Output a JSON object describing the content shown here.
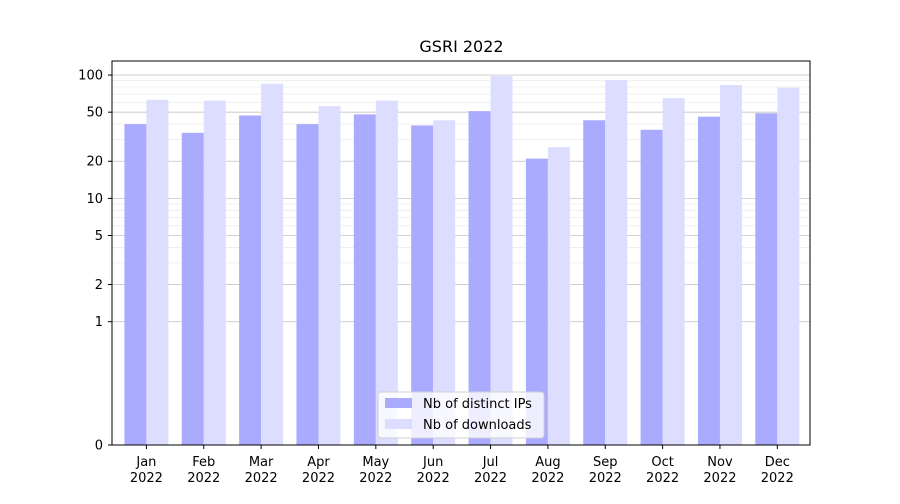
{
  "chart_data": {
    "type": "bar",
    "title": "GSRI 2022",
    "xlabel": "",
    "ylabel": "",
    "scale": "symlog",
    "ylim": [
      0,
      130
    ],
    "yticks": [
      {
        "value": 0,
        "label": "0"
      },
      {
        "value": 1,
        "label": "1"
      },
      {
        "value": 2,
        "label": "2"
      },
      {
        "value": 5,
        "label": "5"
      },
      {
        "value": 10,
        "label": "10"
      },
      {
        "value": 20,
        "label": "20"
      },
      {
        "value": 50,
        "label": "50"
      },
      {
        "value": 100,
        "label": "100"
      }
    ],
    "categories": [
      {
        "month": "Jan",
        "year": "2022"
      },
      {
        "month": "Feb",
        "year": "2022"
      },
      {
        "month": "Mar",
        "year": "2022"
      },
      {
        "month": "Apr",
        "year": "2022"
      },
      {
        "month": "May",
        "year": "2022"
      },
      {
        "month": "Jun",
        "year": "2022"
      },
      {
        "month": "Jul",
        "year": "2022"
      },
      {
        "month": "Aug",
        "year": "2022"
      },
      {
        "month": "Sep",
        "year": "2022"
      },
      {
        "month": "Oct",
        "year": "2022"
      },
      {
        "month": "Nov",
        "year": "2022"
      },
      {
        "month": "Dec",
        "year": "2022"
      }
    ],
    "series": [
      {
        "name": "Nb of distinct IPs",
        "color": "#aaaaff",
        "values": [
          40,
          34,
          47,
          40,
          48,
          39,
          51,
          21,
          43,
          36,
          46,
          49
        ]
      },
      {
        "name": "Nb of downloads",
        "color": "#ddddff",
        "values": [
          63,
          62,
          85,
          56,
          62,
          43,
          98,
          26,
          91,
          65,
          83,
          79
        ]
      }
    ],
    "grid": true,
    "legend_position": "bottom-center"
  }
}
